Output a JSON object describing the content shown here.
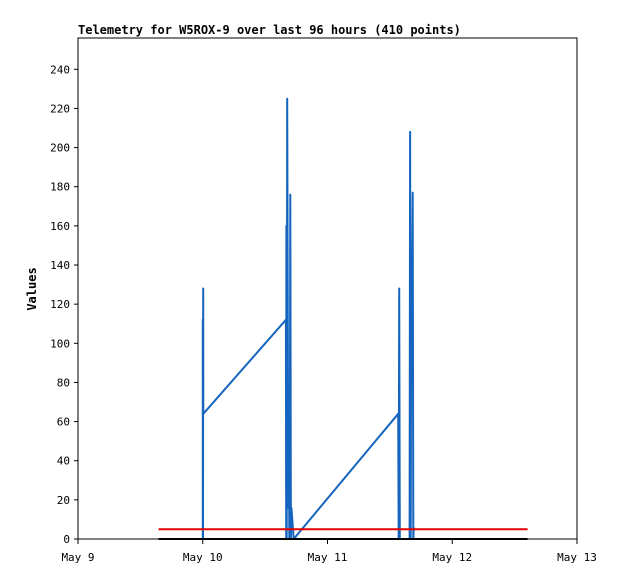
{
  "chart_data": {
    "type": "line",
    "title": "Telemetry for W5ROX-9 over last 96 hours (410 points)",
    "xlabel": "",
    "ylabel": "Values",
    "x_ticks": [
      "May 9",
      "May 10",
      "May 11",
      "May 12",
      "May 13"
    ],
    "y_ticks": [
      0,
      20,
      40,
      60,
      80,
      100,
      120,
      140,
      160,
      180,
      200,
      220,
      240
    ],
    "xlim": [
      0,
      96
    ],
    "ylim": [
      0,
      256
    ],
    "grid": false,
    "legend": "none",
    "colors": {
      "blue": "#1565c0",
      "red": "#e00000",
      "black": "#000000"
    },
    "series": [
      {
        "color": "#1565c0",
        "points": [
          [
            24.0,
            0
          ],
          [
            24.0,
            112
          ],
          [
            24.05,
            0
          ],
          [
            24.08,
            128
          ],
          [
            24.1,
            64
          ],
          [
            40.0,
            112
          ],
          [
            40.05,
            0
          ],
          [
            40.1,
            160
          ],
          [
            40.15,
            0
          ],
          [
            40.25,
            225
          ],
          [
            40.35,
            128
          ],
          [
            40.45,
            16
          ],
          [
            40.55,
            72
          ],
          [
            40.65,
            0
          ],
          [
            40.75,
            16
          ],
          [
            40.85,
            176
          ],
          [
            40.95,
            0
          ],
          [
            41.05,
            16
          ],
          [
            41.5,
            0
          ],
          [
            61.6,
            64
          ],
          [
            61.7,
            0
          ],
          [
            61.8,
            128
          ],
          [
            61.9,
            0
          ],
          [
            63.8,
            0
          ],
          [
            63.9,
            208
          ],
          [
            64.0,
            0
          ],
          [
            64.1,
            136
          ],
          [
            64.2,
            145
          ],
          [
            64.3,
            140
          ],
          [
            64.4,
            177
          ],
          [
            64.5,
            0
          ],
          [
            64.6,
            6
          ]
        ]
      },
      {
        "color": "#e00000",
        "points": [
          [
            15.5,
            5
          ],
          [
            86.5,
            5
          ]
        ]
      },
      {
        "color": "#000000",
        "points": [
          [
            15.5,
            0
          ],
          [
            86.5,
            0
          ]
        ]
      }
    ]
  }
}
